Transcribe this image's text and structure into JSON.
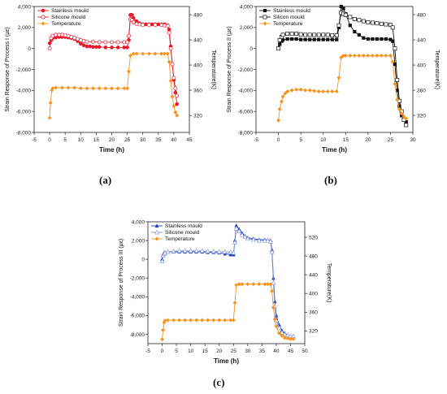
{
  "chart_data": [
    {
      "type": "line",
      "panel_label": "(a)",
      "xlabel": "Time (h)",
      "ylabel": "Strain Response of Process I (με)",
      "y2label": "Temperature(K)",
      "xlim": [
        -5,
        45
      ],
      "xticks": [
        "-5",
        "0",
        "5",
        "10",
        "15",
        "20",
        "25",
        "30",
        "35",
        "40",
        "45"
      ],
      "ylim": [
        -8000,
        4000
      ],
      "yticks": [
        "-8,000",
        "-6,000",
        "-4,000",
        "-2,000",
        "0",
        "2,000",
        "4,000"
      ],
      "y2lim": [
        293,
        493
      ],
      "y2ticks": [
        "320",
        "360",
        "400",
        "440",
        "480"
      ],
      "legend": "top-left",
      "series": [
        {
          "name": "Stainless mould",
          "axis": "left",
          "color": "#e8192c",
          "marker": "circle-filled",
          "x": [
            0,
            0.5,
            1,
            2,
            3,
            4,
            5,
            6,
            7,
            8,
            9,
            10,
            11,
            12,
            13,
            14,
            15,
            16,
            18,
            20,
            22,
            24,
            25,
            25.5,
            26,
            26.5,
            27,
            28,
            29,
            30,
            31,
            32,
            33,
            34,
            35,
            36,
            37,
            38,
            38.5,
            39,
            39.5,
            40,
            40.5,
            41
          ],
          "y": [
            500,
            800,
            1000,
            1050,
            1100,
            1100,
            1100,
            1050,
            1000,
            900,
            700,
            450,
            300,
            200,
            200,
            150,
            150,
            150,
            100,
            100,
            100,
            100,
            100,
            800,
            3200,
            3200,
            2900,
            2600,
            2400,
            2300,
            2300,
            2300,
            2300,
            2300,
            2300,
            2300,
            2300,
            2200,
            1800,
            200,
            -1500,
            -3000,
            -4200,
            -5300
          ]
        },
        {
          "name": "Silicone mould",
          "axis": "left",
          "color": "#e8192c",
          "marker": "circle-open",
          "x": [
            0,
            0.5,
            1,
            2,
            3,
            4,
            5,
            6,
            7,
            8,
            9,
            10,
            11,
            12,
            14,
            16,
            18,
            20,
            22,
            24,
            25,
            25.5,
            26,
            26.5,
            27,
            28,
            29,
            30,
            32,
            34,
            36,
            37,
            38,
            38.5,
            39,
            39.5,
            40,
            40.5,
            41
          ],
          "y": [
            0,
            1000,
            1200,
            1300,
            1300,
            1300,
            1250,
            1200,
            1100,
            1000,
            900,
            800,
            700,
            650,
            650,
            600,
            600,
            600,
            600,
            600,
            600,
            1200,
            2800,
            2700,
            2500,
            2350,
            2300,
            2250,
            2250,
            2250,
            2250,
            2200,
            2150,
            1500,
            0,
            -1500,
            -2800,
            -3800,
            -4500
          ]
        },
        {
          "name": "Temperature",
          "axis": "right",
          "color": "#f7941d",
          "marker": "diamond",
          "x": [
            0,
            0.3,
            0.7,
            1,
            2,
            4,
            6,
            8,
            10,
            12,
            14,
            16,
            18,
            20,
            22,
            24,
            25,
            25.5,
            26,
            27,
            28,
            30,
            32,
            34,
            36,
            37,
            38,
            38.5,
            39,
            39.5,
            40,
            40.5,
            41
          ],
          "y": [
            316,
            340,
            360,
            363,
            364,
            364,
            364,
            364,
            363,
            363,
            363,
            363,
            363,
            363,
            363,
            363,
            363,
            390,
            415,
            418,
            418,
            418,
            418,
            418,
            418,
            418,
            418,
            405,
            375,
            350,
            335,
            325,
            320
          ]
        }
      ]
    },
    {
      "type": "line",
      "panel_label": "(b)",
      "xlabel": "Time (h)",
      "ylabel": "Strain Response of Process II (με)",
      "y2label": "Temperature(K)",
      "xlim": [
        -5,
        30
      ],
      "xticks": [
        "-5",
        "0",
        "5",
        "10",
        "15",
        "20",
        "25",
        "30"
      ],
      "ylim": [
        -8000,
        4000
      ],
      "yticks": [
        "-8,000",
        "-6,000",
        "-4,000",
        "-2,000",
        "0",
        "2,000",
        "4,000"
      ],
      "y2lim": [
        293,
        493
      ],
      "y2ticks": [
        "320",
        "360",
        "400",
        "440",
        "480"
      ],
      "legend": "top-left",
      "series": [
        {
          "name": "Stainless mould",
          "axis": "left",
          "color": "#111111",
          "marker": "square-filled",
          "x": [
            0,
            0.3,
            0.7,
            1,
            2,
            3,
            4,
            5,
            6,
            7,
            8,
            9,
            10,
            11,
            12,
            13,
            13.5,
            14,
            14.5,
            15,
            16,
            17,
            18,
            19,
            20,
            21,
            22,
            23,
            24,
            25,
            25.5,
            26,
            26.5,
            27,
            27.5,
            28,
            28.5
          ],
          "y": [
            0,
            400,
            700,
            800,
            900,
            900,
            900,
            850,
            850,
            850,
            850,
            850,
            850,
            850,
            850,
            850,
            2000,
            4000,
            3800,
            3300,
            2200,
            1600,
            1300,
            1000,
            900,
            900,
            900,
            900,
            900,
            850,
            700,
            -1500,
            -4000,
            -5500,
            -6400,
            -6800,
            -7000
          ]
        },
        {
          "name": "Silicon mould",
          "axis": "left",
          "color": "#111111",
          "marker": "square-open",
          "x": [
            0,
            0.3,
            0.7,
            1,
            2,
            3,
            4,
            5,
            6,
            7,
            8,
            9,
            10,
            11,
            12,
            13,
            13.5,
            14,
            14.5,
            15,
            16,
            17,
            18,
            19,
            20,
            21,
            22,
            23,
            24,
            25,
            25.5,
            26,
            26.5,
            27,
            27.5,
            28,
            28.5
          ],
          "y": [
            0,
            800,
            1100,
            1300,
            1400,
            1400,
            1400,
            1350,
            1300,
            1300,
            1300,
            1300,
            1300,
            1300,
            1250,
            1250,
            2200,
            3400,
            3300,
            3200,
            3000,
            2800,
            2700,
            2600,
            2500,
            2450,
            2400,
            2350,
            2300,
            2250,
            2000,
            0,
            -3000,
            -5000,
            -6000,
            -6800,
            -7300
          ]
        },
        {
          "name": "Temperature",
          "axis": "right",
          "color": "#f7941d",
          "marker": "diamond",
          "x": [
            0,
            0.3,
            0.7,
            1,
            1.5,
            2,
            3,
            4,
            5,
            6,
            7,
            8,
            9,
            10,
            11,
            12,
            13,
            13.5,
            14,
            14.5,
            15,
            16,
            17,
            18,
            19,
            20,
            21,
            22,
            23,
            24,
            25,
            25.5,
            26,
            26.5,
            27,
            27.5,
            28,
            28.5
          ],
          "y": [
            312,
            330,
            342,
            350,
            355,
            358,
            360,
            361,
            361,
            360,
            360,
            359,
            358,
            358,
            358,
            358,
            358,
            380,
            412,
            415,
            415,
            415,
            415,
            415,
            415,
            415,
            415,
            415,
            415,
            415,
            415,
            405,
            370,
            345,
            330,
            323,
            318,
            315
          ]
        }
      ]
    },
    {
      "type": "line",
      "panel_label": "(c)",
      "xlabel": "Time (h)",
      "ylabel": "Strain Response of Process III (με)",
      "y2label": "Temperature(K)",
      "xlim": [
        -5,
        50
      ],
      "xticks": [
        "-5",
        "0",
        "5",
        "10",
        "15",
        "20",
        "25",
        "30",
        "35",
        "40",
        "45",
        "50"
      ],
      "ylim": [
        -9000,
        4000
      ],
      "yticks": [
        "-8,000",
        "-6,000",
        "-4,000",
        "-2,000",
        "0",
        "2,000",
        "4,000"
      ],
      "y2lim": [
        293,
        553
      ],
      "y2ticks": [
        "320",
        "360",
        "400",
        "440",
        "480",
        "520"
      ],
      "legend": "top-left",
      "series": [
        {
          "name": "Stainless mould",
          "axis": "left",
          "color": "#1f3fbf",
          "marker": "triangle",
          "x": [
            0,
            0.3,
            0.7,
            1,
            2,
            4,
            6,
            8,
            10,
            12,
            14,
            16,
            18,
            20,
            22,
            24,
            25,
            25.5,
            26,
            27,
            28,
            29,
            30,
            32,
            34,
            36,
            37,
            38,
            38.5,
            39,
            39.5,
            40,
            41,
            42,
            43,
            44,
            45,
            46
          ],
          "y": [
            0,
            500,
            700,
            750,
            800,
            800,
            800,
            800,
            800,
            800,
            800,
            750,
            750,
            700,
            600,
            500,
            500,
            2000,
            3600,
            3200,
            2800,
            2500,
            2300,
            2200,
            2100,
            2100,
            2050,
            2000,
            1000,
            -2000,
            -4500,
            -6000,
            -7000,
            -7600,
            -7900,
            -8100,
            -8200,
            -8200
          ]
        },
        {
          "name": "Silicone mould",
          "axis": "left",
          "color": "#7f8fd8",
          "marker": "triangle-open",
          "x": [
            0,
            0.3,
            0.7,
            1,
            2,
            4,
            6,
            8,
            10,
            12,
            14,
            16,
            18,
            20,
            22,
            24,
            25,
            25.5,
            26,
            27,
            28,
            29,
            30,
            32,
            34,
            36,
            37,
            38,
            38.5,
            39,
            39.5,
            40,
            41,
            42,
            43,
            44,
            45,
            46
          ],
          "y": [
            -200,
            400,
            600,
            700,
            800,
            850,
            900,
            900,
            900,
            900,
            900,
            850,
            850,
            800,
            800,
            750,
            700,
            1800,
            3300,
            3000,
            2600,
            2400,
            2200,
            2100,
            2000,
            2000,
            2000,
            1900,
            800,
            -2500,
            -5000,
            -6500,
            -7300,
            -7800,
            -8000,
            -8100,
            -8200,
            -8200
          ]
        },
        {
          "name": "Temperature",
          "axis": "right",
          "color": "#f7941d",
          "marker": "diamond",
          "x": [
            0,
            0.3,
            0.7,
            1,
            2,
            4,
            6,
            8,
            10,
            12,
            14,
            16,
            18,
            20,
            22,
            24,
            25,
            25.5,
            26,
            27,
            28,
            30,
            32,
            34,
            36,
            37,
            38,
            38.5,
            39,
            39.5,
            40,
            41,
            42,
            43,
            44,
            45,
            46
          ],
          "y": [
            302,
            322,
            338,
            342,
            343,
            343,
            343,
            343,
            343,
            343,
            343,
            343,
            343,
            343,
            343,
            343,
            343,
            380,
            418,
            420,
            420,
            420,
            420,
            420,
            420,
            420,
            420,
            405,
            370,
            345,
            330,
            315,
            310,
            305,
            304,
            303,
            303
          ]
        }
      ]
    }
  ]
}
